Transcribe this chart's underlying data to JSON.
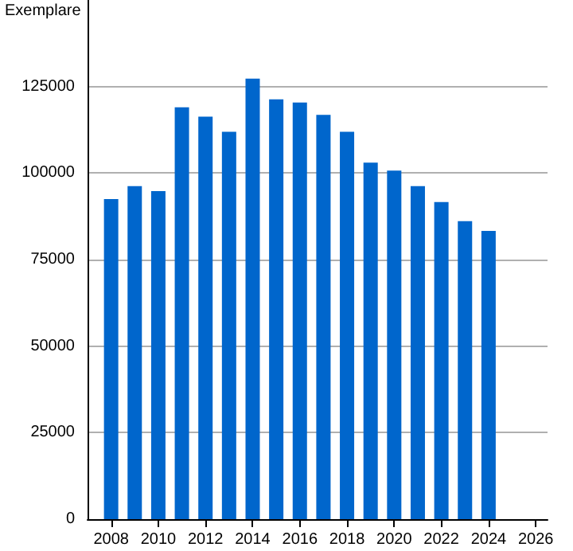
{
  "chart_data": {
    "type": "bar",
    "ylabel": "Exemplare",
    "x": [
      2008,
      2009,
      2010,
      2011,
      2012,
      2013,
      2014,
      2015,
      2016,
      2017,
      2018,
      2019,
      2020,
      2021,
      2022,
      2023,
      2024
    ],
    "values": [
      92500,
      96200,
      94800,
      119000,
      116300,
      111900,
      127300,
      121300,
      120400,
      116800,
      111900,
      103000,
      100700,
      96200,
      91600,
      86100,
      83300
    ],
    "color": "#0066cc",
    "xlim": [
      2007,
      2026.5
    ],
    "xticks": [
      2008,
      2010,
      2012,
      2014,
      2016,
      2018,
      2020,
      2022,
      2024,
      2026
    ],
    "ylim": [
      0,
      150000
    ],
    "yticks": [
      0,
      25000,
      50000,
      75000,
      100000,
      125000
    ],
    "grid": "y"
  }
}
